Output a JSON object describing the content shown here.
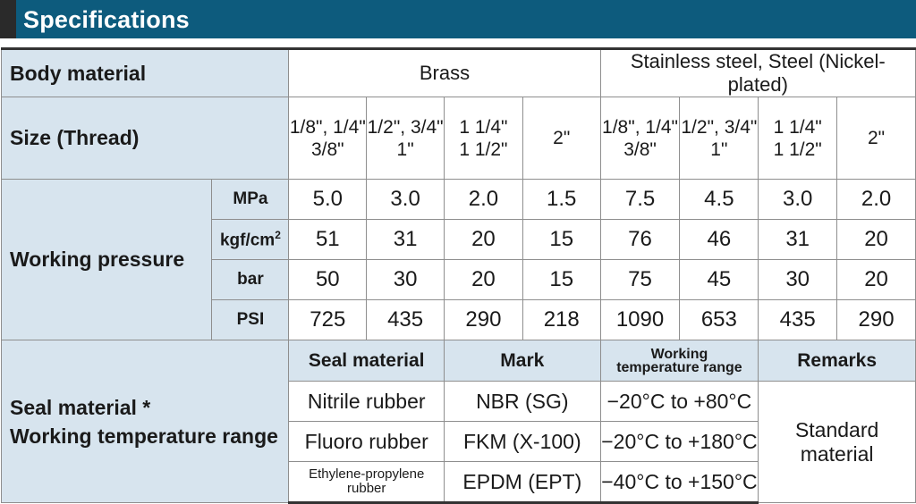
{
  "header": {
    "title": "Specifications"
  },
  "body_material": {
    "label": "Body material",
    "brass": "Brass",
    "stainless": "Stainless steel, Steel (Nickel-plated)"
  },
  "size": {
    "label": "Size (Thread)",
    "values": [
      [
        "1/8\", 1/4\"",
        "3/8\""
      ],
      [
        "1/2\", 3/4\"",
        "1\""
      ],
      [
        "1 1/4\"",
        "1 1/2\""
      ],
      [
        "2\""
      ],
      [
        "1/8\", 1/4\"",
        "3/8\""
      ],
      [
        "1/2\", 3/4\"",
        "1\""
      ],
      [
        "1 1/4\"",
        "1 1/2\""
      ],
      [
        "2\""
      ]
    ]
  },
  "working_pressure": {
    "label": "Working pressure",
    "rows": [
      {
        "unit": "MPa",
        "unit_sup": "",
        "values": [
          "5.0",
          "3.0",
          "2.0",
          "1.5",
          "7.5",
          "4.5",
          "3.0",
          "2.0"
        ]
      },
      {
        "unit": "kgf/cm",
        "unit_sup": "2",
        "values": [
          "51",
          "31",
          "20",
          "15",
          "76",
          "46",
          "31",
          "20"
        ]
      },
      {
        "unit": "bar",
        "unit_sup": "",
        "values": [
          "50",
          "30",
          "20",
          "15",
          "75",
          "45",
          "30",
          "20"
        ]
      },
      {
        "unit": "PSI",
        "unit_sup": "",
        "values": [
          "725",
          "435",
          "290",
          "218",
          "1090",
          "653",
          "435",
          "290"
        ]
      }
    ]
  },
  "seal": {
    "label_line1": "Seal material *",
    "label_line2": "Working temperature range",
    "headers": {
      "seal_material": "Seal material",
      "mark": "Mark",
      "temp_line1": "Working",
      "temp_line2": "temperature range",
      "remarks": "Remarks"
    },
    "rows": [
      {
        "material": "Nitrile rubber",
        "material_line2": "",
        "mark": "NBR (SG)",
        "temp": "−20°C to +80°C"
      },
      {
        "material": "Fluoro rubber",
        "material_line2": "",
        "mark": "FKM (X-100)",
        "temp": "−20°C to +180°C"
      },
      {
        "material": "Ethylene-propylene",
        "material_line2": "rubber",
        "mark": "EPDM (EPT)",
        "temp": "−40°C to +150°C"
      }
    ],
    "remarks": "Standard material"
  }
}
